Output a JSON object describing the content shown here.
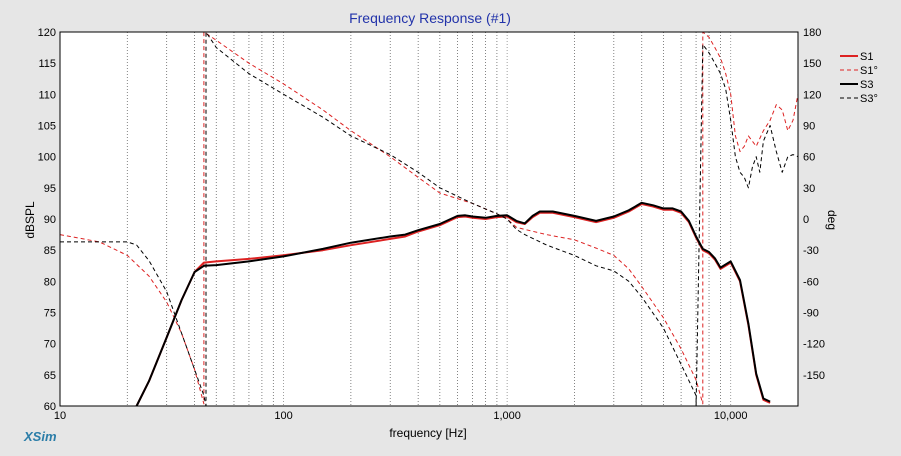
{
  "app": {
    "brand": "XSim"
  },
  "chart_data": {
    "type": "line",
    "title": "Frequency Response (#1)",
    "xlabel": "frequency [Hz]",
    "ylabel": "dBSPL",
    "y2label": "deg",
    "xscale": "log",
    "xlim": [
      10,
      20000
    ],
    "ylim": [
      60,
      120
    ],
    "y2lim": [
      -180,
      180
    ],
    "grid": true,
    "legend_position": "top-right",
    "x_ticks": [
      {
        "value": 10,
        "label": "10"
      },
      {
        "value": 100,
        "label": "100"
      },
      {
        "value": 1000,
        "label": "1,000"
      },
      {
        "value": 10000,
        "label": "10,000"
      }
    ],
    "y_ticks": [
      60,
      65,
      70,
      75,
      80,
      85,
      90,
      95,
      100,
      105,
      110,
      115,
      120
    ],
    "y2_ticks": [
      -150,
      -120,
      -90,
      -60,
      -30,
      0,
      30,
      60,
      90,
      120,
      150,
      180
    ],
    "series": [
      {
        "name": "S1",
        "axis": "left",
        "color": "#dd2222",
        "dash": "none",
        "width": 2,
        "x": [
          22,
          25,
          30,
          35,
          40,
          44,
          50,
          70,
          100,
          150,
          200,
          300,
          350,
          400,
          500,
          600,
          650,
          700,
          800,
          900,
          1000,
          1100,
          1200,
          1300,
          1400,
          1600,
          2000,
          2500,
          3000,
          3500,
          4000,
          4500,
          5000,
          5500,
          6000,
          6500,
          7000,
          7500,
          8000,
          8500,
          9000,
          10000,
          11000,
          12000,
          13000,
          14000,
          15000
        ],
        "y": [
          60,
          64,
          71,
          77,
          81.5,
          83,
          83.2,
          83.6,
          84.2,
          85,
          85.8,
          86.8,
          87.2,
          88,
          89,
          90.3,
          90.4,
          90.2,
          90.0,
          90.3,
          90.4,
          89.5,
          89.2,
          90.3,
          91,
          91,
          90.3,
          89.5,
          90.2,
          91.2,
          92.4,
          92,
          91.5,
          91.5,
          91,
          89.5,
          87,
          85,
          84.5,
          83.5,
          82,
          83,
          80,
          73,
          65,
          61,
          60.5
        ]
      },
      {
        "name": "S1°",
        "axis": "right",
        "color": "#dd2222",
        "dash": "4,3",
        "width": 1,
        "x": [
          10,
          15,
          20,
          25,
          30,
          35,
          40,
          44,
          44,
          50,
          70,
          100,
          150,
          200,
          300,
          400,
          500,
          700,
          900,
          1000,
          1100,
          1200,
          1500,
          2000,
          2500,
          3000,
          3500,
          4000,
          5000,
          6000,
          7000,
          7500,
          7500,
          8000,
          8500,
          9000,
          9500,
          10000,
          10500,
          11000,
          11500,
          12000,
          13000,
          14000,
          15000,
          16000,
          17000,
          18000,
          19000,
          20000
        ],
        "y": [
          -15,
          -22,
          -35,
          -55,
          -80,
          -110,
          -145,
          -178,
          180,
          172,
          150,
          130,
          105,
          85,
          60,
          40,
          25,
          15,
          5,
          0,
          -8,
          -10,
          -15,
          -20,
          -28,
          -35,
          -48,
          -65,
          -95,
          -125,
          -155,
          -178,
          180,
          175,
          165,
          155,
          140,
          120,
          80,
          65,
          70,
          80,
          70,
          85,
          95,
          110,
          105,
          85,
          95,
          120
        ]
      },
      {
        "name": "S3",
        "axis": "left",
        "color": "#000000",
        "dash": "none",
        "width": 2,
        "x": [
          22,
          25,
          30,
          35,
          40,
          44,
          50,
          70,
          100,
          150,
          200,
          300,
          350,
          400,
          500,
          600,
          650,
          700,
          800,
          900,
          1000,
          1100,
          1200,
          1300,
          1400,
          1600,
          2000,
          2500,
          3000,
          3500,
          4000,
          4500,
          5000,
          5500,
          6000,
          6500,
          7000,
          7500,
          8000,
          8500,
          9000,
          10000,
          11000,
          12000,
          13000,
          14000,
          15000
        ],
        "y": [
          60,
          64,
          71,
          77,
          81.5,
          82.5,
          82.6,
          83.2,
          84,
          85.2,
          86.2,
          87.2,
          87.5,
          88.2,
          89.2,
          90.5,
          90.6,
          90.4,
          90.2,
          90.5,
          90.6,
          89.7,
          89.3,
          90.5,
          91.2,
          91.2,
          90.5,
          89.7,
          90.4,
          91.4,
          92.6,
          92.2,
          91.7,
          91.7,
          91.2,
          89.7,
          87.2,
          85.2,
          84.7,
          83.7,
          82.2,
          83.2,
          80.2,
          73.2,
          65.2,
          61.2,
          60.7
        ]
      },
      {
        "name": "S3°",
        "axis": "right",
        "color": "#000000",
        "dash": "4,3",
        "width": 1,
        "x": [
          10,
          15,
          20,
          22,
          25,
          30,
          35,
          40,
          44,
          45,
          45,
          50,
          70,
          100,
          150,
          200,
          300,
          400,
          500,
          700,
          900,
          1000,
          1100,
          1200,
          1500,
          2000,
          2500,
          3000,
          3500,
          4000,
          5000,
          6000,
          7000,
          7000,
          7500,
          8000,
          8500,
          9000,
          9500,
          10000,
          10500,
          11000,
          11500,
          12000,
          12500,
          13000,
          13500,
          14000,
          15000,
          16000,
          17000,
          18000,
          19000,
          20000
        ],
        "y": [
          -22,
          -22,
          -22,
          -25,
          -40,
          -70,
          -110,
          -145,
          -170,
          -180,
          180,
          165,
          140,
          120,
          98,
          80,
          62,
          45,
          30,
          15,
          5,
          0,
          -10,
          -15,
          -25,
          -35,
          -45,
          -50,
          -60,
          -75,
          -105,
          -140,
          -170,
          -180,
          168,
          160,
          150,
          140,
          125,
          95,
          60,
          45,
          40,
          30,
          50,
          60,
          45,
          75,
          90,
          65,
          45,
          60,
          62,
          60
        ]
      }
    ]
  }
}
